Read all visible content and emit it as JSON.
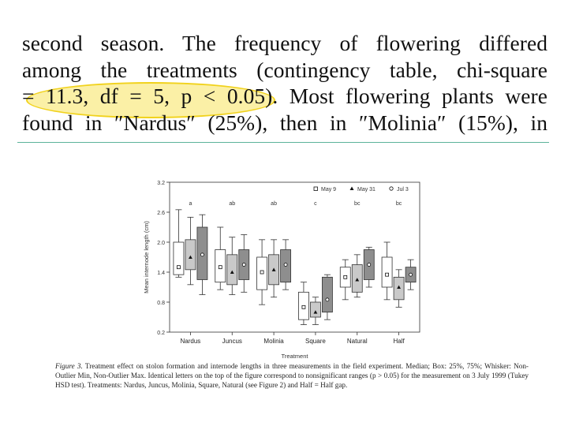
{
  "paragraph": {
    "line1": "second season. The frequency of flowering differed",
    "line2": "among the treatments (contingency table, chi-square",
    "line3a": "= 11.3, df = 5, p < 0.05)",
    "line3b": ". Most flowering plants were",
    "line4": "found in ″Nardus″ (25%), then in ″Molinia″ (15%), in"
  },
  "highlight_color": "#f1d21c",
  "rule_color": "#5cb39a",
  "chart_data": {
    "type": "box",
    "title": "",
    "xlabel": "Treatment",
    "ylabel": "Mean internode length (cm)",
    "ylim": [
      0.2,
      3.2
    ],
    "yticks": [
      "3.2",
      "2.6",
      "2.0",
      "1.4",
      "0.8",
      "0.2"
    ],
    "ytick_values": [
      3.2,
      2.6,
      2.0,
      1.4,
      0.8,
      0.2
    ],
    "categories": [
      "Nardus",
      "Juncus",
      "Molinia",
      "Square",
      "Natural",
      "Half"
    ],
    "letters": [
      "a",
      "ab",
      "ab",
      "c",
      "bc",
      "bc"
    ],
    "legend": [
      {
        "name": "May 9",
        "marker": "□"
      },
      {
        "name": "May 31",
        "marker": "▲"
      },
      {
        "name": "Jul 3",
        "marker": "○"
      }
    ],
    "series": [
      {
        "name": "May 9",
        "fill": "#ffffff",
        "boxes": [
          {
            "min": 1.3,
            "q1": 1.35,
            "median": 1.5,
            "q3": 2.0,
            "max": 2.65
          },
          {
            "min": 1.05,
            "q1": 1.2,
            "median": 1.5,
            "q3": 1.85,
            "max": 2.3
          },
          {
            "min": 0.75,
            "q1": 1.05,
            "median": 1.4,
            "q3": 1.7,
            "max": 2.05
          },
          {
            "min": 0.35,
            "q1": 0.45,
            "median": 0.7,
            "q3": 1.0,
            "max": 1.2
          },
          {
            "min": 0.85,
            "q1": 1.1,
            "median": 1.3,
            "q3": 1.5,
            "max": 1.65
          },
          {
            "min": 0.85,
            "q1": 1.1,
            "median": 1.35,
            "q3": 1.7,
            "max": 2.0
          }
        ]
      },
      {
        "name": "May 31",
        "fill": "#c9c9c9",
        "boxes": [
          {
            "min": 1.15,
            "q1": 1.45,
            "median": 1.7,
            "q3": 2.05,
            "max": 2.5
          },
          {
            "min": 0.95,
            "q1": 1.15,
            "median": 1.4,
            "q3": 1.75,
            "max": 2.1
          },
          {
            "min": 0.9,
            "q1": 1.15,
            "median": 1.45,
            "q3": 1.75,
            "max": 2.05
          },
          {
            "min": 0.35,
            "q1": 0.5,
            "median": 0.6,
            "q3": 0.8,
            "max": 0.9
          },
          {
            "min": 0.9,
            "q1": 1.0,
            "median": 1.25,
            "q3": 1.55,
            "max": 1.75
          },
          {
            "min": 0.7,
            "q1": 0.85,
            "median": 1.1,
            "q3": 1.3,
            "max": 1.45
          }
        ]
      },
      {
        "name": "Jul 3",
        "fill": "#7a7a7a",
        "boxes": [
          {
            "min": 0.95,
            "q1": 1.25,
            "median": 1.75,
            "q3": 2.3,
            "max": 2.55
          },
          {
            "min": 1.0,
            "q1": 1.25,
            "median": 1.55,
            "q3": 1.85,
            "max": 2.15
          },
          {
            "min": 1.05,
            "q1": 1.2,
            "median": 1.55,
            "q3": 1.85,
            "max": 2.05
          },
          {
            "min": 0.45,
            "q1": 0.6,
            "median": 0.85,
            "q3": 1.3,
            "max": 1.35
          },
          {
            "min": 1.1,
            "q1": 1.25,
            "median": 1.55,
            "q3": 1.85,
            "max": 1.9
          },
          {
            "min": 1.05,
            "q1": 1.2,
            "median": 1.35,
            "q3": 1.5,
            "max": 1.65
          }
        ]
      }
    ]
  },
  "caption": {
    "label": "Figure 3.",
    "text": " Treatment effect on stolon formation and internode lengths in three measurements in the field experiment. Median; Box: 25%, 75%; Whisker: Non-Outlier Min, Non-Outlier Max. Identical letters on the top of the figure correspond to nonsignificant ranges (p > 0.05) for the measurement on 3 July 1999 (Tukey HSD test). Treatments: Nardus, Juncus, Molinia, Square, Natural (see Figure 2) and Half = Half gap."
  }
}
